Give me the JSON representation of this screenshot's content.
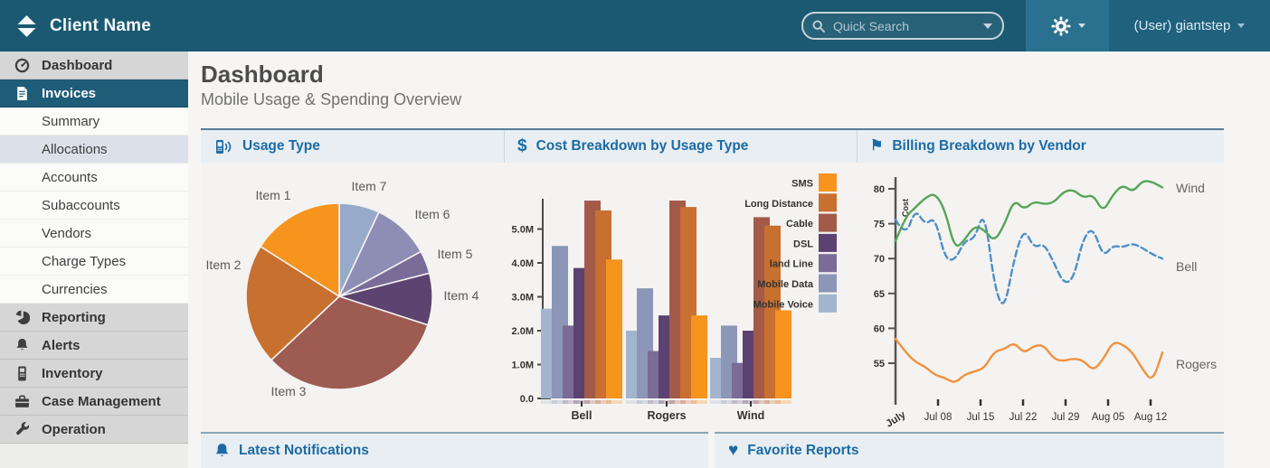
{
  "navbar": {
    "brand": "Client Name",
    "search_placeholder": "Quick Search",
    "user_label": "(User) giantstep",
    "icons": [
      "logo-diamond-icon",
      "search-icon",
      "gear-icon",
      "caret-down-icon"
    ]
  },
  "sidebar": {
    "items": [
      {
        "label": "Dashboard",
        "level": 1,
        "icon": "gauge-icon"
      },
      {
        "label": "Invoices",
        "level": 1,
        "icon": "invoice-icon",
        "state": "active"
      },
      {
        "label": "Summary",
        "level": 2
      },
      {
        "label": "Allocations",
        "level": 2,
        "state": "selected"
      },
      {
        "label": "Accounts",
        "level": 2
      },
      {
        "label": "Subaccounts",
        "level": 2
      },
      {
        "label": "Vendors",
        "level": 2
      },
      {
        "label": "Charge Types",
        "level": 2
      },
      {
        "label": "Currencies",
        "level": 2
      },
      {
        "label": "Reporting",
        "level": 1,
        "icon": "pie-icon"
      },
      {
        "label": "Alerts",
        "level": 1,
        "icon": "bell-icon"
      },
      {
        "label": "Inventory",
        "level": 1,
        "icon": "mobile-icon"
      },
      {
        "label": "Case Management",
        "level": 1,
        "icon": "briefcase-icon"
      },
      {
        "label": "Operation",
        "level": 1,
        "icon": "wrench-icon"
      }
    ]
  },
  "page": {
    "title": "Dashboard",
    "subtitle": "Mobile Usage & Spending Overview"
  },
  "panels": {
    "usage": {
      "title": "Usage Type",
      "icon": "mobile-signal-icon"
    },
    "cost": {
      "title": "Cost Breakdown by Usage Type",
      "icon": "dollar-icon",
      "dollar_glyph": "$"
    },
    "billing": {
      "title": "Billing Breakdown by Vendor",
      "icon": "flag-icon",
      "flag_glyph": "⚑"
    },
    "notifications": {
      "title": "Latest Notifications",
      "icon": "bell-icon"
    },
    "favorites": {
      "title": "Favorite Reports",
      "icon": "heart-icon",
      "heart_glyph": "♥"
    }
  },
  "colors": {
    "navbar_bg": "#1a5971",
    "accent_blue": "#1a6ba5",
    "sidebar_active_bg": "#1e5c77",
    "panel_border": "#567f98"
  },
  "chart_data": [
    {
      "type": "pie",
      "title": "Usage Type",
      "slices": [
        {
          "label": "Item 7",
          "value": 7,
          "color": "#97aaca"
        },
        {
          "label": "Item 6",
          "value": 10,
          "color": "#8d8db5"
        },
        {
          "label": "Item 5",
          "value": 4,
          "color": "#7a6c99"
        },
        {
          "label": "Item 4",
          "value": 9,
          "color": "#5d4370"
        },
        {
          "label": "Item 3",
          "value": 33,
          "color": "#9e5b52"
        },
        {
          "label": "Item 2",
          "value": 21,
          "color": "#c8702f"
        },
        {
          "label": "Item 1",
          "value": 16,
          "color": "#f7941e"
        }
      ]
    },
    {
      "type": "bar",
      "title": "Cost Breakdown by Usage Type",
      "categories": [
        "Bell",
        "Rogers",
        "Wind"
      ],
      "series": [
        {
          "name": "Mobile Voice",
          "color": "#a2b4ce",
          "values": [
            2.65,
            2.0,
            1.2
          ]
        },
        {
          "name": "Mobile Data",
          "color": "#8c96b6",
          "values": [
            4.5,
            3.25,
            2.15
          ]
        },
        {
          "name": "land Line",
          "color": "#7a6c96",
          "values": [
            2.15,
            1.4,
            1.05
          ]
        },
        {
          "name": "DSL",
          "color": "#5c4270",
          "values": [
            3.85,
            2.45,
            2.0
          ]
        },
        {
          "name": "Cable",
          "color": "#a45a49",
          "values": [
            5.9,
            5.9,
            5.35
          ]
        },
        {
          "name": "Long Distance",
          "color": "#c8702f",
          "values": [
            5.55,
            5.65,
            5.1
          ]
        },
        {
          "name": "SMS",
          "color": "#f7941e",
          "values": [
            4.1,
            2.45,
            2.6
          ]
        }
      ],
      "legend_order": [
        "SMS",
        "Long Distance",
        "Cable",
        "DSL",
        "land Line",
        "Mobile Data",
        "Mobile Voice"
      ],
      "ylim": [
        0,
        5.9
      ],
      "yticks": [
        0,
        1,
        2,
        3,
        4,
        5
      ],
      "yticklabels": [
        "0.0",
        "1.0M",
        "2.0M",
        "3.0M",
        "4.0M",
        "5.0M"
      ]
    },
    {
      "type": "line",
      "title": "Billing Breakdown by Vendor",
      "ylabel": "Cost",
      "ylim": [
        52,
        82
      ],
      "yticks": [
        55,
        60,
        65,
        70,
        75,
        80
      ],
      "xticklabels": [
        "July",
        "Jul 08",
        "Jul 15",
        "Jul 22",
        "Jul 29",
        "Aug 05",
        "Aug 12"
      ],
      "series": [
        {
          "name": "Rogers",
          "color": "#f2913d",
          "dashed": false,
          "values": [
            58.5,
            56.6,
            55.2,
            54.5,
            53.3,
            52.9,
            52.1,
            53.4,
            53.8,
            54.3,
            56.7,
            57.0,
            58.0,
            56.4,
            57.5,
            57.6,
            55.6,
            55.3,
            55.7,
            55.4,
            53.9,
            55.5,
            58.1,
            57.7,
            56.5,
            54.1,
            52.3,
            56.5
          ]
        },
        {
          "name": "Bell",
          "color": "#4e8fc7",
          "dashed": true,
          "values": [
            75.6,
            73.0,
            77.2,
            74.8,
            76.0,
            70.0,
            69.7,
            72.6,
            72.8,
            77.1,
            66.0,
            62.4,
            70.0,
            74.4,
            71.5,
            72.2,
            69.5,
            66.4,
            67.0,
            73.0,
            74.5,
            70.2,
            71.9,
            71.6,
            72.2,
            71.5,
            70.6,
            70.0
          ]
        },
        {
          "name": "Wind",
          "color": "#56a556",
          "dashed": false,
          "values": [
            72.5,
            76.0,
            77.3,
            78.7,
            79.4,
            77.0,
            71.3,
            72.7,
            74.7,
            74.1,
            72.4,
            74.8,
            78.5,
            77.0,
            78.2,
            77.8,
            78.0,
            79.6,
            79.9,
            78.7,
            79.2,
            76.6,
            79.2,
            80.6,
            79.5,
            81.2,
            81.0,
            80.2
          ]
        }
      ]
    }
  ]
}
